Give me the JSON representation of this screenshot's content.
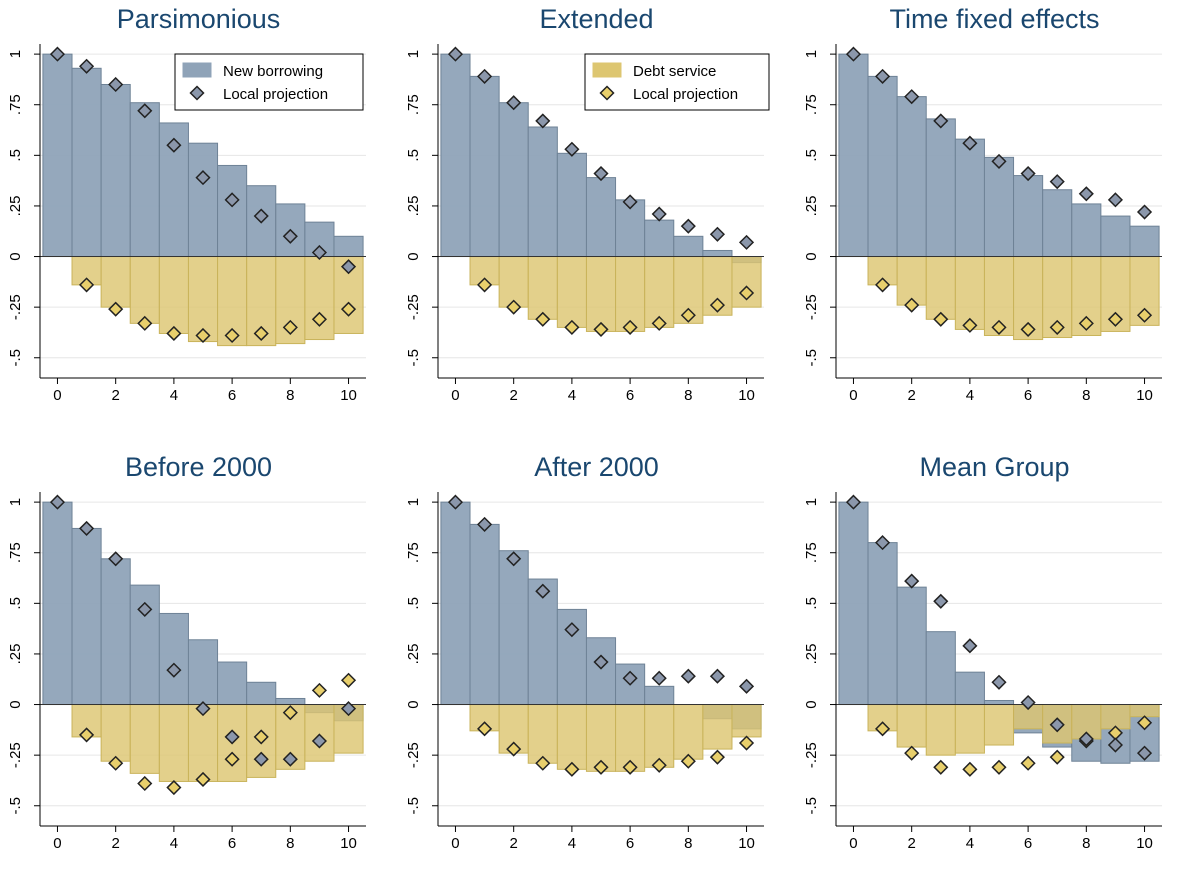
{
  "colors": {
    "borrow": "#8fa3b8",
    "debt": "#ddc671",
    "marker_borrow": "#8b97ab",
    "marker_debt": "#e8cf6c",
    "edge": "#222222",
    "title": "#1a476f"
  },
  "axes": {
    "y_ticks": [
      "1",
      ".75",
      ".5",
      ".25",
      "0",
      "-.25",
      "-.5"
    ],
    "y_values": [
      1,
      0.75,
      0.5,
      0.25,
      0,
      -0.25,
      -0.5
    ],
    "x_ticks": [
      "0",
      "2",
      "4",
      "6",
      "8",
      "10"
    ],
    "x_values": [
      0,
      2,
      4,
      6,
      8,
      10
    ],
    "ylim": [
      -0.6,
      1.05
    ],
    "xlim": [
      -0.6,
      10.6
    ]
  },
  "chart_data": [
    {
      "type": "bar",
      "title": "Parsimonious",
      "legend": {
        "bar_label": "New borrowing",
        "marker_label": "Local projection",
        "bar_series": "borrow",
        "marker_color": "borrow"
      },
      "x": [
        0,
        1,
        2,
        3,
        4,
        5,
        6,
        7,
        8,
        9,
        10
      ],
      "borrowing": [
        1,
        0.93,
        0.85,
        0.76,
        0.66,
        0.56,
        0.45,
        0.35,
        0.26,
        0.17,
        0.1
      ],
      "debt_service": [
        0,
        -0.14,
        -0.25,
        -0.33,
        -0.38,
        -0.42,
        -0.44,
        -0.44,
        -0.43,
        -0.41,
        -0.38
      ],
      "lp_borrowing": [
        1,
        0.94,
        0.85,
        0.72,
        0.55,
        0.39,
        0.28,
        0.2,
        0.1,
        0.02,
        -0.05
      ],
      "lp_debt": [
        null,
        -0.14,
        -0.26,
        -0.33,
        -0.38,
        -0.39,
        -0.39,
        -0.38,
        -0.35,
        -0.31,
        -0.26
      ]
    },
    {
      "type": "bar",
      "title": "Extended",
      "legend": {
        "bar_label": "Debt service",
        "marker_label": "Local projection",
        "bar_series": "debt",
        "marker_color": "debt"
      },
      "x": [
        0,
        1,
        2,
        3,
        4,
        5,
        6,
        7,
        8,
        9,
        10
      ],
      "borrowing": [
        1,
        0.89,
        0.76,
        0.64,
        0.51,
        0.39,
        0.28,
        0.18,
        0.1,
        0.03,
        -0.03
      ],
      "debt_service": [
        0,
        -0.14,
        -0.25,
        -0.31,
        -0.35,
        -0.37,
        -0.37,
        -0.35,
        -0.33,
        -0.29,
        -0.25
      ],
      "lp_borrowing": [
        1,
        0.89,
        0.76,
        0.67,
        0.53,
        0.41,
        0.27,
        0.21,
        0.15,
        0.11,
        0.07
      ],
      "lp_debt": [
        null,
        -0.14,
        -0.25,
        -0.31,
        -0.35,
        -0.36,
        -0.35,
        -0.33,
        -0.29,
        -0.24,
        -0.18
      ]
    },
    {
      "type": "bar",
      "title": "Time fixed effects",
      "x": [
        0,
        1,
        2,
        3,
        4,
        5,
        6,
        7,
        8,
        9,
        10
      ],
      "borrowing": [
        1,
        0.89,
        0.79,
        0.68,
        0.58,
        0.49,
        0.4,
        0.33,
        0.26,
        0.2,
        0.15
      ],
      "debt_service": [
        0,
        -0.14,
        -0.24,
        -0.31,
        -0.36,
        -0.39,
        -0.41,
        -0.4,
        -0.39,
        -0.37,
        -0.34
      ],
      "lp_borrowing": [
        1,
        0.89,
        0.79,
        0.67,
        0.56,
        0.47,
        0.41,
        0.37,
        0.31,
        0.28,
        0.22
      ],
      "lp_debt": [
        null,
        -0.14,
        -0.24,
        -0.31,
        -0.34,
        -0.35,
        -0.36,
        -0.35,
        -0.33,
        -0.31,
        -0.29
      ]
    },
    {
      "type": "bar",
      "title": "Before 2000",
      "x": [
        0,
        1,
        2,
        3,
        4,
        5,
        6,
        7,
        8,
        9,
        10
      ],
      "borrowing": [
        1,
        0.87,
        0.72,
        0.59,
        0.45,
        0.32,
        0.21,
        0.11,
        0.03,
        -0.04,
        -0.08
      ],
      "debt_service": [
        0,
        -0.16,
        -0.28,
        -0.34,
        -0.38,
        -0.38,
        -0.38,
        -0.36,
        -0.32,
        -0.28,
        -0.24
      ],
      "lp_borrowing": [
        1,
        0.87,
        0.72,
        0.47,
        0.17,
        -0.02,
        -0.16,
        -0.27,
        -0.27,
        -0.18,
        -0.02
      ],
      "lp_debt": [
        null,
        -0.15,
        -0.29,
        -0.39,
        -0.41,
        -0.37,
        -0.27,
        -0.16,
        -0.04,
        0.07,
        0.12
      ]
    },
    {
      "type": "bar",
      "title": "After 2000",
      "x": [
        0,
        1,
        2,
        3,
        4,
        5,
        6,
        7,
        8,
        9,
        10
      ],
      "borrowing": [
        1,
        0.89,
        0.76,
        0.62,
        0.47,
        0.33,
        0.2,
        0.09,
        0.0,
        -0.07,
        -0.12
      ],
      "debt_service": [
        0,
        -0.13,
        -0.24,
        -0.29,
        -0.32,
        -0.33,
        -0.33,
        -0.31,
        -0.27,
        -0.22,
        -0.16
      ],
      "lp_borrowing": [
        1,
        0.89,
        0.72,
        0.56,
        0.37,
        0.21,
        0.13,
        0.13,
        0.14,
        0.14,
        0.09
      ],
      "lp_debt": [
        null,
        -0.12,
        -0.22,
        -0.29,
        -0.32,
        -0.31,
        -0.31,
        -0.3,
        -0.28,
        -0.26,
        -0.19
      ]
    },
    {
      "type": "bar",
      "title": "Mean Group",
      "x": [
        0,
        1,
        2,
        3,
        4,
        5,
        6,
        7,
        8,
        9,
        10
      ],
      "borrowing": [
        1,
        0.8,
        0.58,
        0.36,
        0.16,
        0.02,
        -0.14,
        -0.21,
        -0.28,
        -0.29,
        -0.28
      ],
      "debt_service": [
        0,
        -0.13,
        -0.21,
        -0.25,
        -0.24,
        -0.2,
        -0.12,
        -0.19,
        -0.17,
        -0.12,
        -0.06
      ],
      "lp_borrowing": [
        1,
        0.8,
        0.61,
        0.51,
        0.29,
        0.11,
        0.01,
        -0.1,
        -0.17,
        -0.2,
        -0.24
      ],
      "lp_debt": [
        null,
        -0.12,
        -0.24,
        -0.31,
        -0.32,
        -0.31,
        -0.29,
        -0.26,
        -0.18,
        -0.14,
        -0.09
      ]
    }
  ]
}
